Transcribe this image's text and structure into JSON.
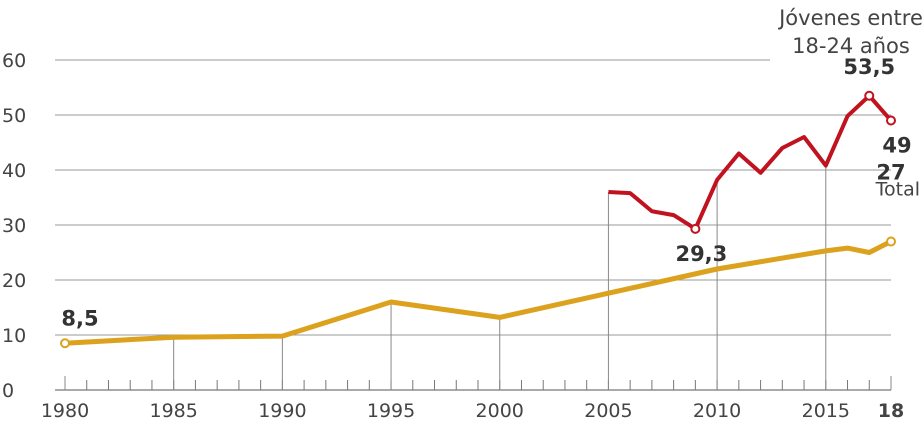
{
  "chart_data": {
    "type": "line",
    "xlim": [
      1980,
      2018
    ],
    "xticks": [
      1980,
      1985,
      1990,
      1995,
      2000,
      2005,
      2010,
      2015,
      {
        "value": 2018,
        "label": "18"
      }
    ],
    "ylim": [
      0,
      60
    ],
    "yticks": [
      0,
      10,
      20,
      30,
      40,
      50,
      60
    ],
    "grid": true,
    "series": [
      {
        "name": "Total",
        "color": "#dca11d",
        "x": [
          1980,
          1985,
          1990,
          1995,
          2000,
          2005,
          2010,
          2015,
          2016,
          2017,
          2018
        ],
        "values": [
          8.5,
          9.6,
          9.8,
          16,
          13.2,
          17.6,
          22,
          25.3,
          25.8,
          25,
          27
        ],
        "value_labels": [
          "8,5",
          null,
          null,
          null,
          null,
          null,
          null,
          null,
          null,
          null,
          "27"
        ]
      },
      {
        "name": "Jóvenes entre 18-24 años",
        "color": "#c1121f",
        "x": [
          2005,
          2006,
          2007,
          2008,
          2009,
          2010,
          2011,
          2012,
          2013,
          2014,
          2015,
          2016,
          2017,
          2018
        ],
        "values": [
          36,
          35.8,
          32.5,
          31.8,
          29.3,
          38.2,
          43,
          39.5,
          44,
          46,
          40.8,
          49.8,
          53.5,
          49
        ],
        "value_labels": [
          null,
          null,
          null,
          null,
          "29,3",
          null,
          null,
          null,
          null,
          null,
          null,
          null,
          "53,5",
          "49"
        ]
      }
    ]
  }
}
